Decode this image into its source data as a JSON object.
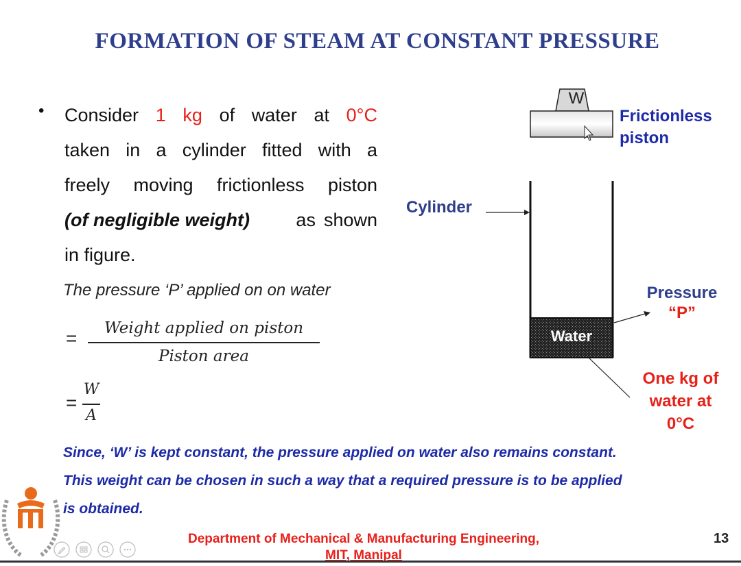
{
  "slide": {
    "title": "FORMATION OF STEAM AT CONSTANT PRESSURE",
    "bullet": {
      "line1": {
        "w1": "Consider",
        "w2": "1",
        "w3": "kg",
        "w4": "of",
        "w5": "water",
        "w6": "at",
        "w7": "0°C"
      },
      "line2": {
        "w1": "taken",
        "w2": "in",
        "w3": "a",
        "w4": "cylinder",
        "w5": "fitted",
        "w6": "with",
        "w7": "a"
      },
      "line3": {
        "w1": "freely",
        "w2": "moving",
        "w3": "frictionless",
        "w4": "piston"
      },
      "line4": {
        "emph": "(of negligible weight)",
        "w1": "as",
        "w2": "shown"
      },
      "line5": "in figure."
    },
    "pressure_line": "The pressure ‘P’ applied on on water",
    "equation1": {
      "equals": "=",
      "numerator": "Weight applied on piston",
      "denominator": "Piston area"
    },
    "equation2": {
      "equals": "=",
      "numerator": "W",
      "denominator": "A"
    },
    "note_line1": "Since, ‘W’ is kept constant, the pressure applied on water also remains constant.",
    "note_line2": "This weight can be chosen in such a way that a required pressure is to be applied",
    "note_line3": "is obtained.",
    "footer": {
      "line1": "Department of Mechanical & Manufacturing Engineering,",
      "line2": "MIT, Manipal",
      "page_number": "13"
    }
  },
  "diagram": {
    "weight_label": "W",
    "frictionless_line1": "Frictionless",
    "frictionless_line2": "piston",
    "cylinder_label": "Cylinder",
    "pressure_line1": "Pressure",
    "pressure_line2": "“P”",
    "water_label": "Water",
    "water_note_line1": "One kg of",
    "water_note_line2": "water at",
    "water_note_line3": "0°C"
  },
  "colors": {
    "title": "#2e3e8c",
    "highlight": "#e8201a",
    "note": "#1d2aa8",
    "logo": "#e86a1a"
  },
  "icons": [
    "pen-icon",
    "slides-icon",
    "zoom-icon",
    "more-icon",
    "mit-logo-icon"
  ]
}
